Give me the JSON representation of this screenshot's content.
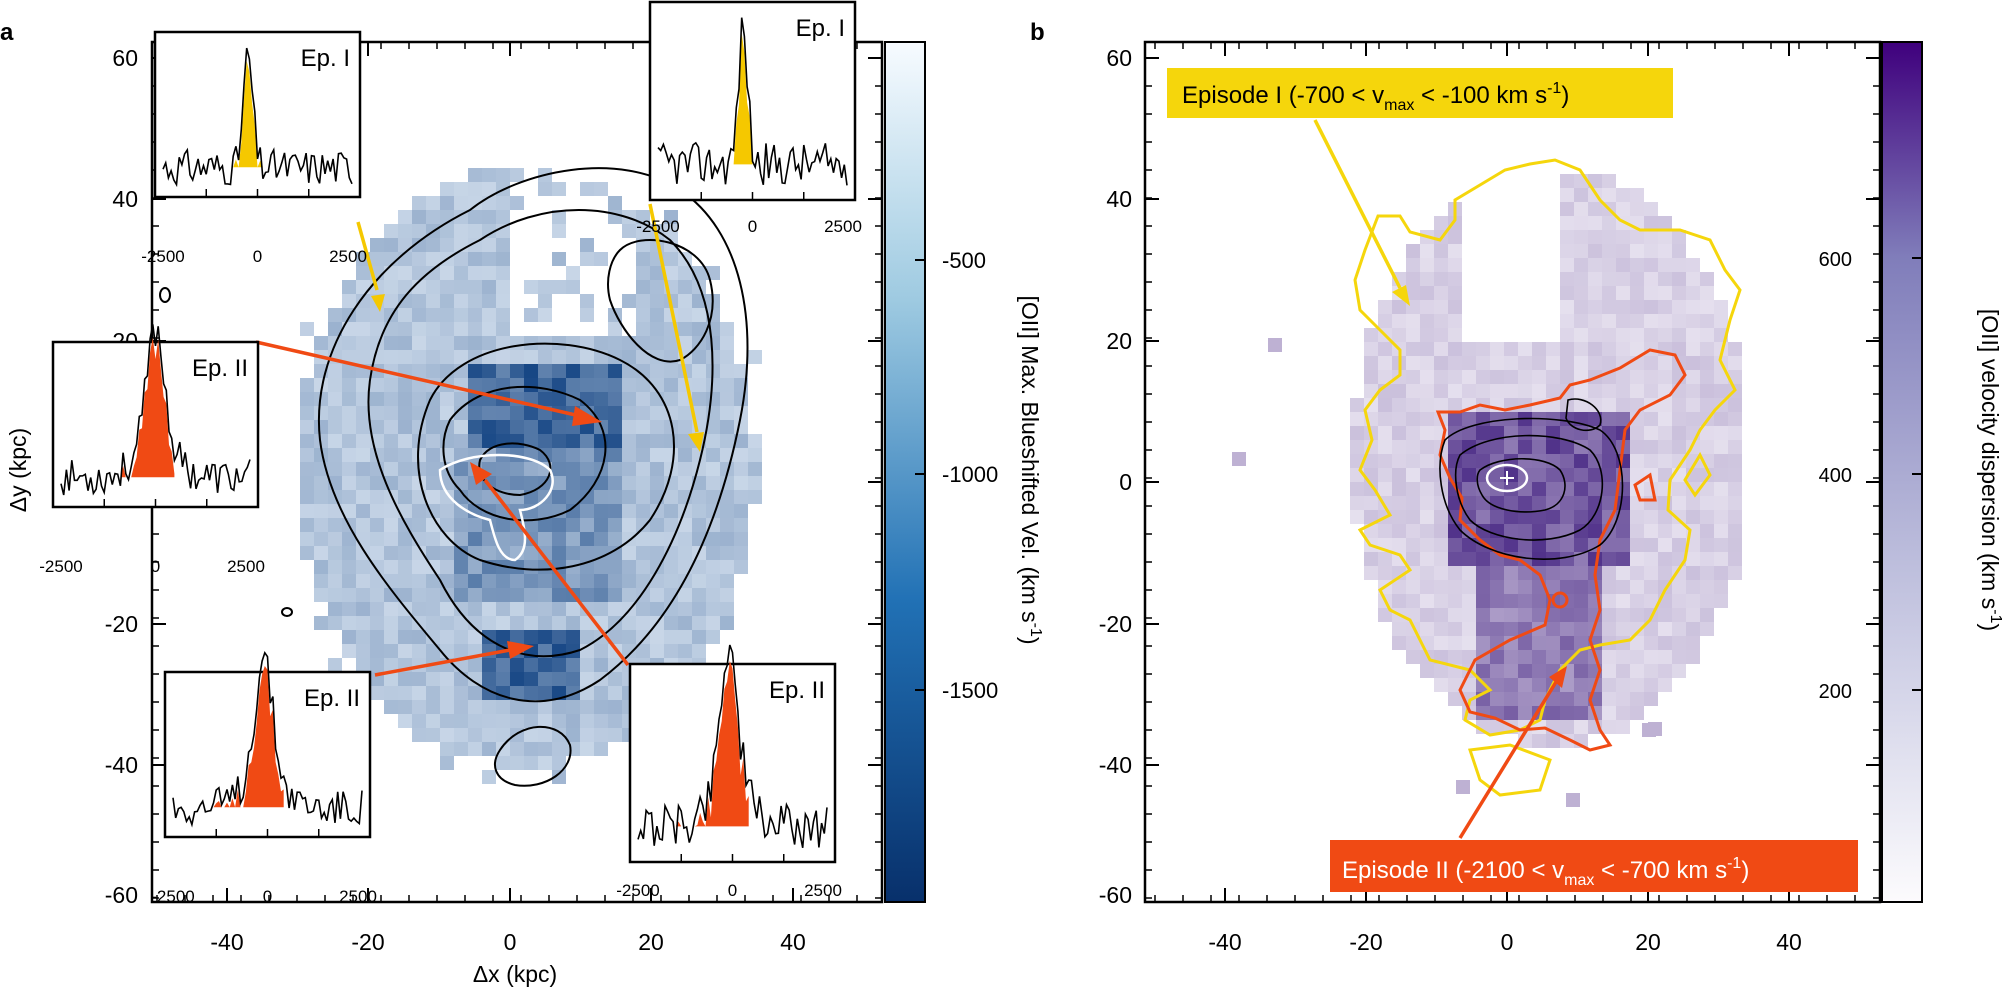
{
  "panel_a": {
    "letter": "a",
    "x_ticks": [
      "-40",
      "-20",
      "0",
      "20",
      "40"
    ],
    "y_ticks": [
      "60",
      "40",
      "20",
      "0",
      "-20",
      "-40",
      "-60"
    ],
    "x_label": "Δx (kpc)",
    "y_label": "Δy (kpc)",
    "colorbar_label": "[OII] Max. Blueshifted Vel. (km s",
    "colorbar_label_sup": "-1",
    "colorbar_label_tail": ")",
    "colorbar_ticks": [
      "-500",
      "-1000",
      "-1500"
    ],
    "insets": [
      {
        "label": "Ep. I",
        "ticks": [
          "-2500",
          "0",
          "2500"
        ]
      },
      {
        "label": "Ep. I",
        "ticks": [
          "-2500",
          "0",
          "2500"
        ]
      },
      {
        "label": "Ep. II",
        "ticks": [
          "-2500",
          "0",
          "2500"
        ]
      },
      {
        "label": "Ep. II",
        "ticks": [
          "-2500",
          "0",
          "2500"
        ]
      },
      {
        "label": "Ep. II",
        "ticks": [
          "-2500",
          "0",
          "2500"
        ]
      }
    ],
    "colors": {
      "episode1": "#f5c800",
      "episode2": "#f04a14",
      "map_dark": "#0b3d7e",
      "map_light": "#e9f1fa"
    }
  },
  "panel_b": {
    "letter": "b",
    "x_ticks": [
      "-40",
      "-20",
      "0",
      "20",
      "40"
    ],
    "y_ticks": [
      "60",
      "40",
      "20",
      "0",
      "-20",
      "-40",
      "-60"
    ],
    "colorbar_label": "[OII] velocity dispersion (km s",
    "colorbar_label_sup": "-1",
    "colorbar_label_tail": ")",
    "colorbar_ticks": [
      "600",
      "400",
      "200"
    ],
    "episode1_box": {
      "pre": "Episode I (-700 < v",
      "sub": "max",
      "post": " < -100 km s",
      "sup": "-1",
      "end": ")"
    },
    "episode2_box": {
      "pre": "Episode II (-2100 < v",
      "sub": "max",
      "post": " < -700 km s",
      "sup": "-1",
      "end": ")"
    },
    "colors": {
      "episode1": "#f5d60c",
      "episode2": "#f04a14",
      "map_dark": "#3f1d7e",
      "map_light": "#f4f1f8"
    }
  }
}
